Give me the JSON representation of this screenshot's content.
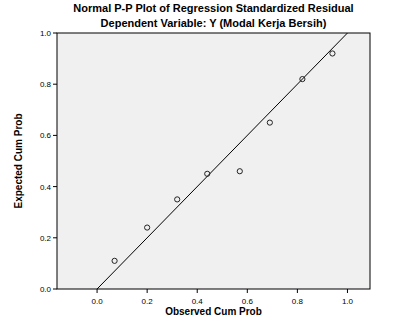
{
  "chart_data": {
    "type": "scatter",
    "title": "Normal P-P Plot of Regression Standardized Residual",
    "subtitle": "Dependent Variable: Y (Modal Kerja Bersih)",
    "x_label": "Observed Cum Prob",
    "y_label": "Expected Cum Prob",
    "series": [
      {
        "type": "scatter",
        "marker": "circle",
        "color": "#222222",
        "x": [
          0.07,
          0.2,
          0.32,
          0.44,
          0.57,
          0.69,
          0.82,
          0.94
        ],
        "values": [
          0.11,
          0.24,
          0.35,
          0.45,
          0.46,
          0.65,
          0.82,
          0.92
        ]
      },
      {
        "type": "line",
        "color": "#000000",
        "x": [
          0,
          1
        ],
        "values": [
          0,
          1
        ]
      }
    ],
    "xlim": [
      -0.16,
      1.09
    ],
    "ylim": [
      0,
      1
    ],
    "xticks": [
      {
        "value": 0,
        "label": "0.0"
      },
      0.2,
      0.4,
      0.6,
      0.8,
      {
        "value": 1,
        "label": "1.0"
      }
    ],
    "yticks": [
      {
        "value": 0,
        "label": "0.0"
      },
      0.2,
      0.4,
      0.6,
      0.8,
      {
        "value": 1,
        "label": "1.0"
      }
    ],
    "grid": false
  }
}
